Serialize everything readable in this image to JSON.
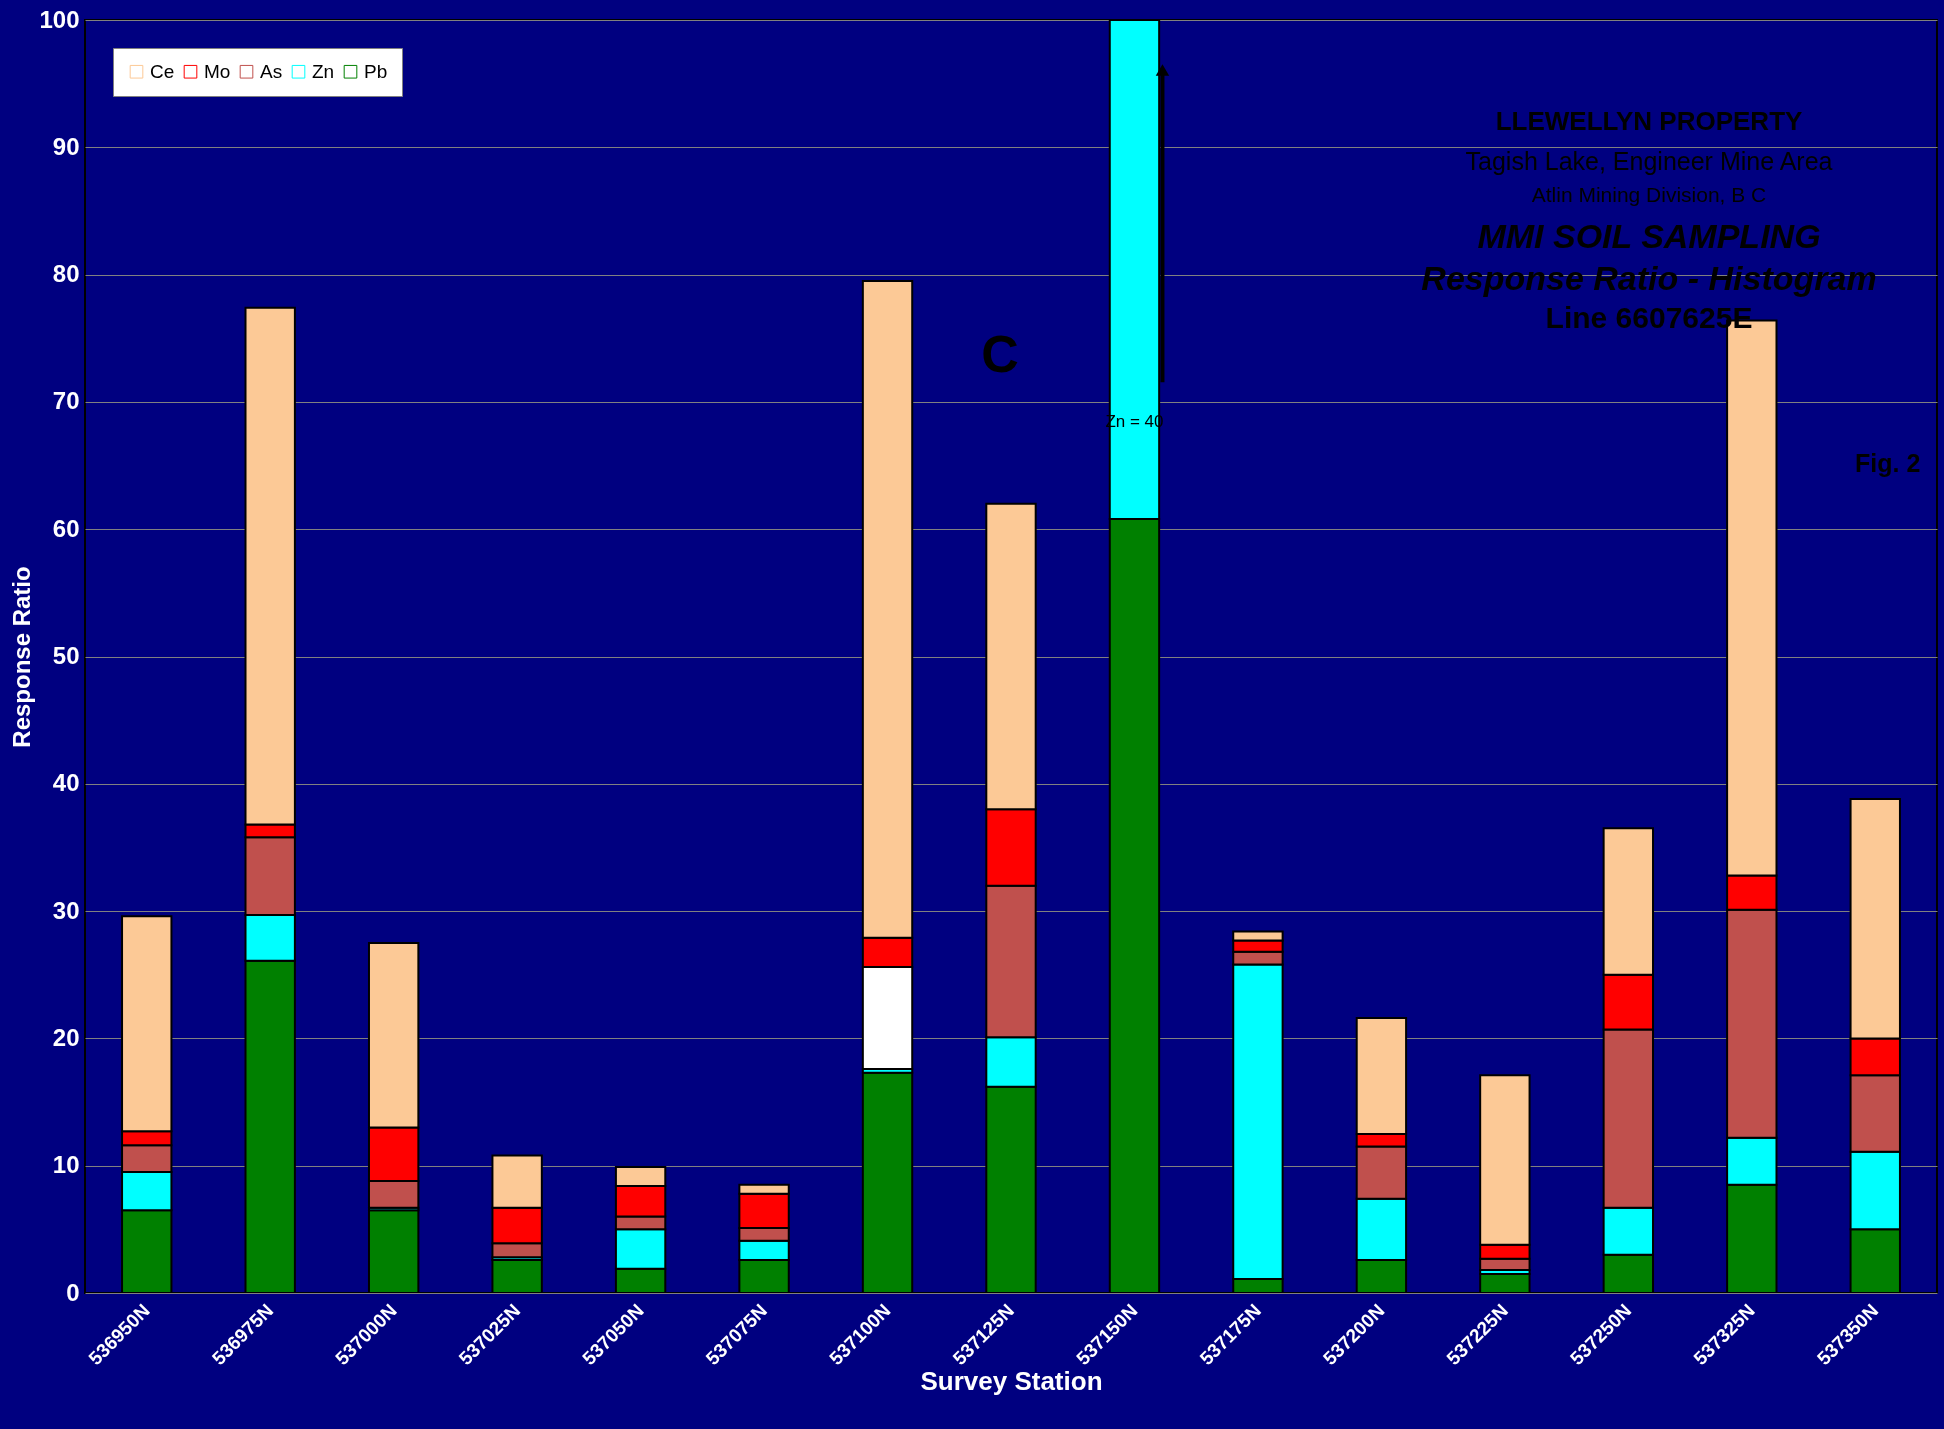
{
  "chart_data": {
    "type": "bar",
    "stacked": true,
    "title": "MMI SOIL SAMPLING",
    "subtitle": "Response Ratio - Histogram",
    "xlabel": "Survey Station",
    "ylabel": "Response Ratio",
    "categories": [
      "536950N",
      "536975N",
      "537000N",
      "537025N",
      "537050N",
      "537075N",
      "537100N",
      "537125N",
      "537150N",
      "537175N",
      "537200N",
      "537225N",
      "537250N",
      "537325N",
      "537350N"
    ],
    "series": [
      {
        "name": "Pb",
        "color": "#008000",
        "values": [
          6.5,
          26.1,
          6.5,
          2.6,
          1.9,
          2.6,
          17.3,
          16.2,
          60.8,
          1.1,
          2.6,
          1.5,
          3.0,
          8.5,
          5.0
        ]
      },
      {
        "name": "Zn",
        "color": "#00ffff",
        "values": [
          3.0,
          3.6,
          0.2,
          0.2,
          3.1,
          1.5,
          0.3,
          3.9,
          39.2,
          24.7,
          4.8,
          0.3,
          3.7,
          3.7,
          6.1
        ]
      },
      {
        "name": "As",
        "color": "#c0504d",
        "colors": [
          "#c0504d",
          "#c0504d",
          "#c0504d",
          "#c0504d",
          "#c0504d",
          "#c0504d",
          "#ffffff",
          "#c0504d",
          "#c0504d",
          "#c0504d",
          "#c0504d",
          "#c0504d",
          "#c0504d",
          "#c0504d",
          "#c0504d"
        ],
        "values": [
          2.1,
          6.1,
          2.1,
          1.1,
          1.0,
          1.0,
          8.0,
          11.9,
          null,
          1.0,
          4.1,
          0.9,
          14.0,
          17.9,
          6.0
        ]
      },
      {
        "name": "Mo",
        "color": "#ff0000",
        "values": [
          1.1,
          1.0,
          4.2,
          2.8,
          2.4,
          2.7,
          2.3,
          6.0,
          null,
          0.9,
          1.0,
          1.1,
          4.3,
          2.7,
          2.9
        ]
      },
      {
        "name": "Ce",
        "color": "#fcc996",
        "values": [
          16.9,
          40.6,
          14.5,
          4.1,
          1.5,
          0.7,
          51.6,
          24.0,
          null,
          0.7,
          9.1,
          13.3,
          11.5,
          43.6,
          18.8
        ]
      }
    ],
    "ylim": [
      0,
      100
    ],
    "yticks": [
      0,
      10,
      20,
      30,
      40,
      50,
      60,
      70,
      80,
      90,
      100
    ],
    "grid": "y",
    "legend": "top left",
    "annotations": [
      "LLEWELLYN PROPERTY",
      "Tagish Lake, Engineer Mine Area",
      "Atlin Mining Division, B C",
      "Line 6607625E",
      "C",
      "Fig. 2",
      {
        "text": "Zn = 40",
        "x": "537150N",
        "y": 68
      }
    ]
  }
}
